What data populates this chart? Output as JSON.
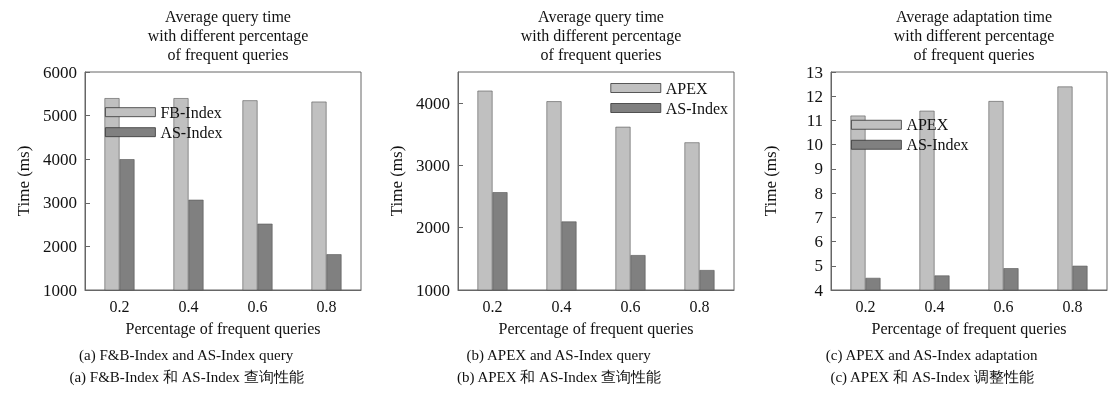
{
  "chart_data": [
    {
      "type": "bar",
      "title": "Average query time\nwith different percentage\nof frequent queries",
      "xlabel": "Percentage of frequent queries",
      "ylabel": "Time (ms)",
      "categories": [
        "0.2",
        "0.4",
        "0.6",
        "0.8"
      ],
      "series": [
        {
          "name": "FB-Index",
          "color": "#c0c0c0",
          "values": [
            5400,
            5400,
            5350,
            5320
          ]
        },
        {
          "name": "AS-Index",
          "color": "#808080",
          "values": [
            4000,
            3070,
            2520,
            1820
          ]
        }
      ],
      "ylim": [
        1000,
        6000
      ],
      "yticks": [
        1000,
        2000,
        3000,
        4000,
        5000,
        6000
      ],
      "grid": false,
      "legend": "top left",
      "annotations": [
        "(a) F&B-Index and AS-Index query",
        "(a) F&B-Index 和 AS-Index 查询性能"
      ]
    },
    {
      "type": "bar",
      "title": "Average query time\nwith different percentage\nof frequent queries",
      "xlabel": "Percentage of frequent queries",
      "ylabel": "Time (ms)",
      "categories": [
        "0.2",
        "0.4",
        "0.6",
        "0.8"
      ],
      "series": [
        {
          "name": "APEX",
          "color": "#c0c0c0",
          "values": [
            4200,
            4030,
            3620,
            3370
          ]
        },
        {
          "name": "AS-Index",
          "color": "#808080",
          "values": [
            2570,
            2100,
            1560,
            1320
          ]
        }
      ],
      "ylim": [
        1000,
        4500
      ],
      "yticks": [
        1000,
        2000,
        3000,
        4000
      ],
      "grid": false,
      "legend": "top right",
      "annotations": [
        "(b) APEX and AS-Index query",
        "(b) APEX 和 AS-Index 查询性能"
      ]
    },
    {
      "type": "bar",
      "title": "Average adaptation time\nwith different percentage\nof frequent queries",
      "xlabel": "Percentage of frequent queries",
      "ylabel": "Time (ms)",
      "categories": [
        "0.2",
        "0.4",
        "0.6",
        "0.8"
      ],
      "series": [
        {
          "name": "APEX",
          "color": "#c0c0c0",
          "values": [
            11.2,
            11.4,
            11.8,
            12.4
          ]
        },
        {
          "name": "AS-Index",
          "color": "#808080",
          "values": [
            4.5,
            4.6,
            4.9,
            5.0
          ]
        }
      ],
      "ylim": [
        4,
        13
      ],
      "yticks": [
        4,
        5,
        6,
        7,
        8,
        9,
        10,
        11,
        12,
        13
      ],
      "grid": false,
      "legend": "top left",
      "annotations": [
        "(c) APEX and AS-Index adaptation",
        "(c) APEX 和 AS-Index 调整性能"
      ]
    }
  ]
}
